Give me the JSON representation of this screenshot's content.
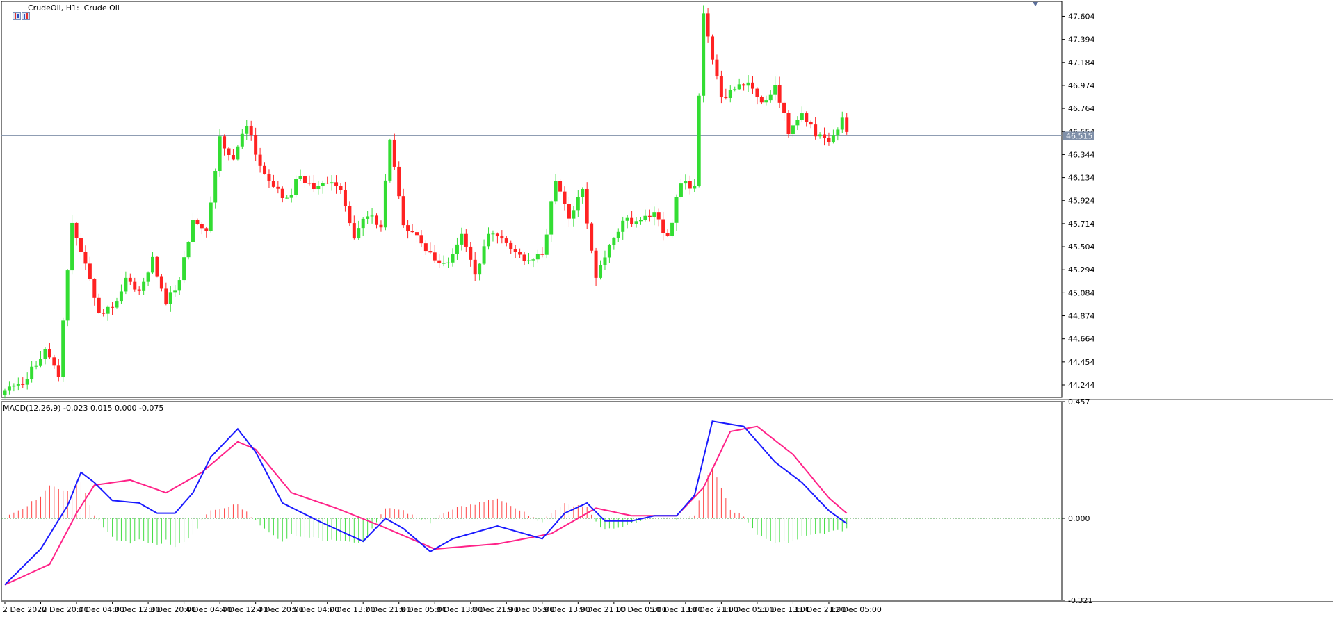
{
  "header": {
    "symbol_label": "CrudeOil, H1:  Crude Oil",
    "macd_label": "MACD(12,26,9) -0.023 0.015 0.000 -0.075"
  },
  "colors": {
    "background": "#ffffff",
    "bull_candle": "#33dd33",
    "bear_candle": "#ff2222",
    "price_line": "#7f8fa8",
    "macd_line": "#1a1aff",
    "signal_line": "#ff2288",
    "hist_positive": "#ff4444",
    "hist_negative": "#44dd44",
    "zero_line": "#4a9a4a"
  },
  "chart_data": [
    {
      "type": "candlestick",
      "title": "CrudeOil, H1:  Crude Oil",
      "ylim": [
        44.13,
        47.74
      ],
      "y_ticks": [
        "47.604",
        "47.394",
        "47.184",
        "46.974",
        "46.764",
        "46.554",
        "46.344",
        "46.134",
        "45.924",
        "45.714",
        "45.504",
        "45.294",
        "45.084",
        "44.874",
        "44.664",
        "44.454",
        "44.244"
      ],
      "current_price": "46.515",
      "x_labels": [
        "2 Dec 2020",
        "2 Dec 20:00",
        "3 Dec 04:00",
        "3 Dec 12:00",
        "3 Dec 20:00",
        "4 Dec 04:00",
        "4 Dec 12:00",
        "4 Dec 20:00",
        "5 Dec 04:00",
        "7 Dec 13:00",
        "7 Dec 21:00",
        "8 Dec 05:00",
        "8 Dec 13:00",
        "8 Dec 21:00",
        "9 Dec 05:00",
        "9 Dec 13:00",
        "9 Dec 21:00",
        "10 Dec 05:00",
        "10 Dec 13:00",
        "10 Dec 21:00",
        "11 Dec 05:00",
        "11 Dec 13:00",
        "11 Dec 21:00",
        "12 Dec 05:00"
      ],
      "anchors": [
        [
          0,
          44.19
        ],
        [
          5,
          44.3
        ],
        [
          9,
          44.57
        ],
        [
          12,
          44.32
        ],
        [
          15,
          45.72
        ],
        [
          18,
          45.35
        ],
        [
          21,
          44.9
        ],
        [
          24,
          44.95
        ],
        [
          27,
          45.22
        ],
        [
          30,
          45.1
        ],
        [
          33,
          45.41
        ],
        [
          36,
          44.98
        ],
        [
          39,
          45.2
        ],
        [
          42,
          45.75
        ],
        [
          45,
          45.65
        ],
        [
          48,
          46.51
        ],
        [
          51,
          46.3
        ],
        [
          54,
          46.6
        ],
        [
          57,
          46.24
        ],
        [
          60,
          46.05
        ],
        [
          63,
          45.95
        ],
        [
          66,
          46.15
        ],
        [
          69,
          46.03
        ],
        [
          72,
          46.08
        ],
        [
          75,
          46.02
        ],
        [
          78,
          45.58
        ],
        [
          81,
          45.78
        ],
        [
          84,
          45.68
        ],
        [
          86,
          46.48
        ],
        [
          89,
          45.7
        ],
        [
          92,
          45.61
        ],
        [
          96,
          45.38
        ],
        [
          99,
          45.36
        ],
        [
          102,
          45.62
        ],
        [
          105,
          45.25
        ],
        [
          108,
          45.62
        ],
        [
          111,
          45.58
        ],
        [
          114,
          45.46
        ],
        [
          117,
          45.38
        ],
        [
          120,
          45.43
        ],
        [
          123,
          46.1
        ],
        [
          126,
          45.76
        ],
        [
          129,
          46.03
        ],
        [
          132,
          45.22
        ],
        [
          135,
          45.52
        ],
        [
          138,
          45.74
        ],
        [
          142,
          45.75
        ],
        [
          145,
          45.82
        ],
        [
          148,
          45.6
        ],
        [
          151,
          46.08
        ],
        [
          154,
          46.06
        ],
        [
          155,
          46.88
        ],
        [
          156,
          47.63
        ],
        [
          158,
          47.21
        ],
        [
          160,
          46.87
        ],
        [
          163,
          46.94
        ],
        [
          166,
          47.0
        ],
        [
          169,
          46.82
        ],
        [
          172,
          46.98
        ],
        [
          175,
          46.53
        ],
        [
          178,
          46.72
        ],
        [
          181,
          46.51
        ],
        [
          184,
          46.46
        ],
        [
          187,
          46.68
        ],
        [
          188,
          46.55
        ]
      ]
    },
    {
      "type": "macd",
      "title": "MACD(12,26,9) -0.023 0.015 0.000 -0.075",
      "ylim": [
        -0.321,
        0.457
      ],
      "y_ticks": [
        "0.457",
        "0.000",
        "-0.321"
      ],
      "macd": [
        [
          0,
          -0.26
        ],
        [
          8,
          -0.12
        ],
        [
          14,
          0.05
        ],
        [
          17,
          0.18
        ],
        [
          20,
          0.14
        ],
        [
          24,
          0.07
        ],
        [
          30,
          0.06
        ],
        [
          34,
          0.02
        ],
        [
          38,
          0.02
        ],
        [
          42,
          0.1
        ],
        [
          46,
          0.24
        ],
        [
          52,
          0.35
        ],
        [
          56,
          0.26
        ],
        [
          62,
          0.06
        ],
        [
          70,
          -0.01
        ],
        [
          80,
          -0.09
        ],
        [
          85,
          0.0
        ],
        [
          89,
          -0.04
        ],
        [
          95,
          -0.13
        ],
        [
          100,
          -0.08
        ],
        [
          110,
          -0.03
        ],
        [
          120,
          -0.08
        ],
        [
          125,
          0.02
        ],
        [
          130,
          0.06
        ],
        [
          134,
          -0.01
        ],
        [
          140,
          -0.01
        ],
        [
          145,
          0.01
        ],
        [
          150,
          0.01
        ],
        [
          154,
          0.09
        ],
        [
          158,
          0.38
        ],
        [
          165,
          0.36
        ],
        [
          172,
          0.22
        ],
        [
          178,
          0.14
        ],
        [
          184,
          0.03
        ],
        [
          188,
          -0.02
        ]
      ],
      "signal": [
        [
          0,
          -0.26
        ],
        [
          10,
          -0.18
        ],
        [
          16,
          0.02
        ],
        [
          20,
          0.13
        ],
        [
          28,
          0.15
        ],
        [
          36,
          0.1
        ],
        [
          44,
          0.18
        ],
        [
          52,
          0.3
        ],
        [
          56,
          0.27
        ],
        [
          64,
          0.1
        ],
        [
          74,
          0.04
        ],
        [
          84,
          -0.03
        ],
        [
          96,
          -0.12
        ],
        [
          110,
          -0.1
        ],
        [
          122,
          -0.06
        ],
        [
          132,
          0.04
        ],
        [
          140,
          0.01
        ],
        [
          150,
          0.01
        ],
        [
          156,
          0.12
        ],
        [
          162,
          0.34
        ],
        [
          168,
          0.36
        ],
        [
          176,
          0.25
        ],
        [
          184,
          0.08
        ],
        [
          188,
          0.02
        ]
      ]
    }
  ]
}
